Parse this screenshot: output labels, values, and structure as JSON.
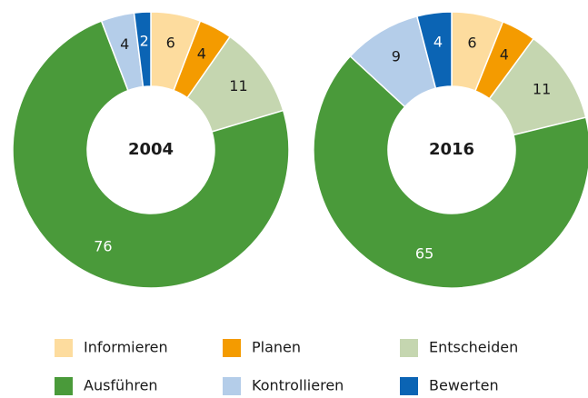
{
  "chart_data": [
    {
      "type": "donut",
      "title": "2004",
      "categories": [
        "Informieren",
        "Planen",
        "Entscheiden",
        "Ausführen",
        "Kontrollieren",
        "Bewerten"
      ],
      "values": [
        6,
        4,
        11,
        76,
        4,
        2
      ],
      "colors": [
        "#fddc9e",
        "#f49b00",
        "#c5d6b0",
        "#4a9a3a",
        "#b4cde9",
        "#0b64b4"
      ]
    },
    {
      "type": "donut",
      "title": "2016",
      "categories": [
        "Informieren",
        "Planen",
        "Entscheiden",
        "Ausführen",
        "Kontrollieren",
        "Bewerten"
      ],
      "values": [
        6,
        4,
        11,
        65,
        9,
        4
      ],
      "colors": [
        "#fddc9e",
        "#f49b00",
        "#c5d6b0",
        "#4a9a3a",
        "#b4cde9",
        "#0b64b4"
      ]
    }
  ]
}
